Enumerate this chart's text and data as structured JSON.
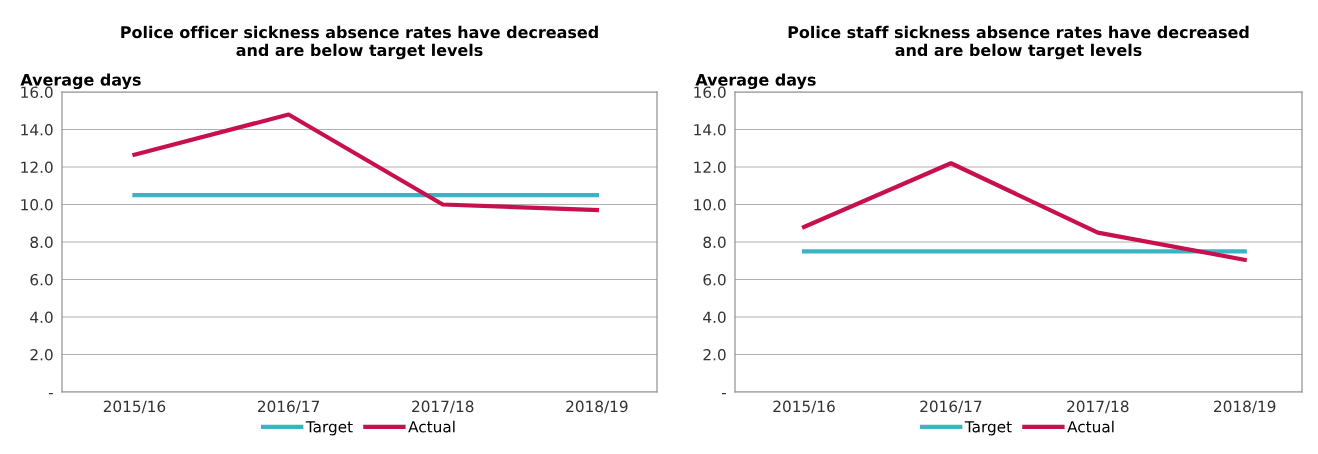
{
  "chart_data": [
    {
      "type": "line",
      "title": "Police officer sickness absence rates have decreased\nand are below target levels",
      "ylabel": "Average days",
      "categories": [
        "2015/16",
        "2016/17",
        "2017/18",
        "2018/19"
      ],
      "series": [
        {
          "name": "Target",
          "color": "#3bb3c3",
          "values": [
            10.5,
            10.5,
            10.5,
            10.5
          ]
        },
        {
          "name": "Actual",
          "color": "#c8104e",
          "values": [
            12.65,
            14.8,
            10.0,
            9.7
          ]
        }
      ],
      "ylim": [
        0,
        16
      ],
      "yticks": [
        {
          "value": 0,
          "label": "-"
        },
        {
          "value": 2,
          "label": "2.0"
        },
        {
          "value": 4,
          "label": "4.0"
        },
        {
          "value": 6,
          "label": "6.0"
        },
        {
          "value": 8,
          "label": "8.0"
        },
        {
          "value": 10,
          "label": "10.0"
        },
        {
          "value": 12,
          "label": "12.0"
        },
        {
          "value": 14,
          "label": "14.0"
        },
        {
          "value": 16,
          "label": "16.0"
        }
      ],
      "grid": "y",
      "legend": "bottom",
      "marker": "none",
      "line_style": "solid"
    },
    {
      "type": "line",
      "title": "Police staff sickness absence rates have decreased\nand are below target levels",
      "ylabel": "Average days",
      "categories": [
        "2015/16",
        "2016/17",
        "2017/18",
        "2018/19"
      ],
      "series": [
        {
          "name": "Target",
          "color": "#3bb3c3",
          "values": [
            7.5,
            7.5,
            7.5,
            7.5
          ]
        },
        {
          "name": "Actual",
          "color": "#c8104e",
          "values": [
            8.8,
            12.2,
            8.5,
            7.05
          ]
        }
      ],
      "ylim": [
        0,
        16
      ],
      "yticks": [
        {
          "value": 0,
          "label": "-"
        },
        {
          "value": 2,
          "label": "2.0"
        },
        {
          "value": 4,
          "label": "4.0"
        },
        {
          "value": 6,
          "label": "6.0"
        },
        {
          "value": 8,
          "label": "8.0"
        },
        {
          "value": 10,
          "label": "10.0"
        },
        {
          "value": 12,
          "label": "12.0"
        },
        {
          "value": 14,
          "label": "14.0"
        },
        {
          "value": 16,
          "label": "16.0"
        }
      ],
      "grid": "y",
      "legend": "bottom",
      "marker": "none",
      "line_style": "solid"
    }
  ]
}
